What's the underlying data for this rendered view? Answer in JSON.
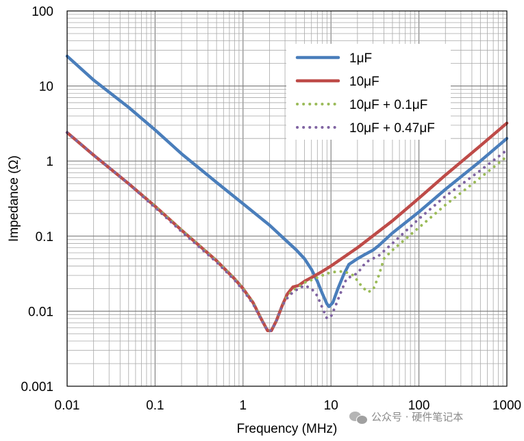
{
  "chart_data": {
    "type": "line",
    "xscale": "log",
    "yscale": "log",
    "xlabel": "Frequency (MHz)",
    "ylabel": "Impedance (Ω)",
    "xlim": [
      0.01,
      1000
    ],
    "ylim": [
      0.001,
      100
    ],
    "xticks": [
      "0.01",
      "0.1",
      "1",
      "10",
      "100",
      "1000"
    ],
    "yticks": [
      "0.001",
      "0.01",
      "0.1",
      "1",
      "10",
      "100"
    ],
    "grid": true,
    "legend_position": "top-right",
    "series": [
      {
        "name": "1μF",
        "color": "#4a7ebb",
        "style": "solid",
        "points": [
          [
            0.01,
            25.0
          ],
          [
            0.02,
            12.0
          ],
          [
            0.05,
            5.2
          ],
          [
            0.1,
            2.6
          ],
          [
            0.2,
            1.25
          ],
          [
            0.5,
            0.52
          ],
          [
            1,
            0.27
          ],
          [
            2,
            0.14
          ],
          [
            3,
            0.09
          ],
          [
            4,
            0.066
          ],
          [
            5,
            0.05
          ],
          [
            6,
            0.036
          ],
          [
            7,
            0.025
          ],
          [
            8,
            0.017
          ],
          [
            9,
            0.0125
          ],
          [
            9.5,
            0.0115
          ],
          [
            10.5,
            0.013
          ],
          [
            12,
            0.02
          ],
          [
            14,
            0.031
          ],
          [
            16,
            0.042
          ],
          [
            20,
            0.05
          ],
          [
            25,
            0.058
          ],
          [
            30,
            0.065
          ],
          [
            35,
            0.075
          ],
          [
            50,
            0.11
          ],
          [
            100,
            0.21
          ],
          [
            200,
            0.42
          ],
          [
            500,
            1.0
          ],
          [
            1000,
            2.0
          ]
        ]
      },
      {
        "name": "10μF",
        "color": "#be4b48",
        "style": "solid",
        "points": [
          [
            0.01,
            2.4
          ],
          [
            0.02,
            1.2
          ],
          [
            0.05,
            0.5
          ],
          [
            0.1,
            0.25
          ],
          [
            0.2,
            0.12
          ],
          [
            0.5,
            0.047
          ],
          [
            0.8,
            0.027
          ],
          [
            1,
            0.02
          ],
          [
            1.3,
            0.013
          ],
          [
            1.6,
            0.008
          ],
          [
            1.9,
            0.0055
          ],
          [
            2.1,
            0.0055
          ],
          [
            2.4,
            0.0075
          ],
          [
            2.8,
            0.012
          ],
          [
            3.2,
            0.017
          ],
          [
            3.7,
            0.021
          ],
          [
            4.3,
            0.022
          ],
          [
            5,
            0.025
          ],
          [
            6,
            0.028
          ],
          [
            8,
            0.034
          ],
          [
            10,
            0.04
          ],
          [
            20,
            0.07
          ],
          [
            50,
            0.16
          ],
          [
            100,
            0.32
          ],
          [
            200,
            0.65
          ],
          [
            500,
            1.6
          ],
          [
            1000,
            3.2
          ]
        ]
      },
      {
        "name": "10μF + 0.1μF",
        "color": "#9bbb59",
        "style": "dotted",
        "points": [
          [
            0.01,
            2.4
          ],
          [
            0.02,
            1.2
          ],
          [
            0.05,
            0.5
          ],
          [
            0.1,
            0.25
          ],
          [
            0.2,
            0.12
          ],
          [
            0.5,
            0.047
          ],
          [
            0.8,
            0.027
          ],
          [
            1,
            0.02
          ],
          [
            1.3,
            0.013
          ],
          [
            1.6,
            0.008
          ],
          [
            1.9,
            0.0055
          ],
          [
            2.1,
            0.0055
          ],
          [
            2.4,
            0.0075
          ],
          [
            2.8,
            0.012
          ],
          [
            3.2,
            0.016
          ],
          [
            3.7,
            0.019
          ],
          [
            4.3,
            0.021
          ],
          [
            5,
            0.024
          ],
          [
            6,
            0.026
          ],
          [
            8,
            0.03
          ],
          [
            10,
            0.033
          ],
          [
            14,
            0.034
          ],
          [
            18,
            0.03
          ],
          [
            22,
            0.022
          ],
          [
            26,
            0.018
          ],
          [
            30,
            0.019
          ],
          [
            35,
            0.03
          ],
          [
            40,
            0.05
          ],
          [
            50,
            0.065
          ],
          [
            100,
            0.13
          ],
          [
            200,
            0.26
          ],
          [
            500,
            0.6
          ],
          [
            1000,
            1.15
          ]
        ]
      },
      {
        "name": "10μF + 0.47μF",
        "color": "#8064a2",
        "style": "dotted",
        "points": [
          [
            0.01,
            2.4
          ],
          [
            0.02,
            1.2
          ],
          [
            0.05,
            0.5
          ],
          [
            0.1,
            0.24
          ],
          [
            0.2,
            0.115
          ],
          [
            0.5,
            0.045
          ],
          [
            0.8,
            0.026
          ],
          [
            1,
            0.019
          ],
          [
            1.3,
            0.0125
          ],
          [
            1.6,
            0.0078
          ],
          [
            1.9,
            0.0055
          ],
          [
            2.1,
            0.0055
          ],
          [
            2.4,
            0.0075
          ],
          [
            2.8,
            0.012
          ],
          [
            3.2,
            0.015
          ],
          [
            3.7,
            0.018
          ],
          [
            4.3,
            0.02
          ],
          [
            5,
            0.022
          ],
          [
            6,
            0.02
          ],
          [
            7,
            0.016
          ],
          [
            8,
            0.011
          ],
          [
            9,
            0.008
          ],
          [
            10,
            0.0085
          ],
          [
            11,
            0.011
          ],
          [
            13,
            0.018
          ],
          [
            15,
            0.027
          ],
          [
            20,
            0.032
          ],
          [
            25,
            0.045
          ],
          [
            35,
            0.055
          ],
          [
            50,
            0.08
          ],
          [
            100,
            0.17
          ],
          [
            200,
            0.34
          ],
          [
            500,
            0.75
          ],
          [
            1000,
            1.4
          ]
        ]
      }
    ]
  },
  "watermark": {
    "text": "公众号 · 硬件笔记本",
    "icon": "wechat-icon"
  }
}
